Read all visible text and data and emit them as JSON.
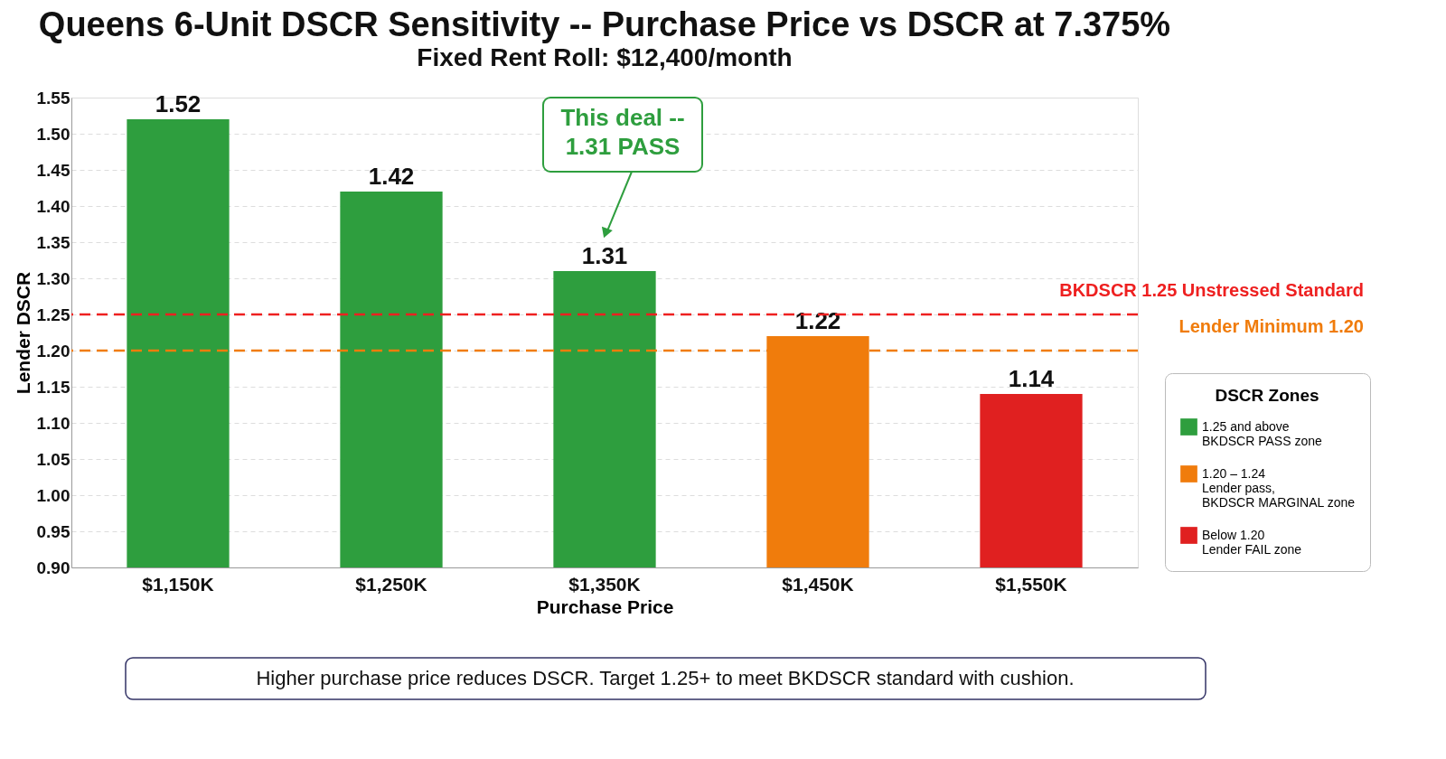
{
  "chart_data": {
    "type": "bar",
    "title": "Queens 6-Unit DSCR Sensitivity -- Purchase Price vs DSCR at 7.375%",
    "subtitle": "Fixed Rent Roll: $12,400/month",
    "xlabel": "Purchase Price",
    "ylabel": "Lender DSCR",
    "legend_title": "DSCR Zones",
    "categories": [
      "$1,150K",
      "$1,250K",
      "$1,350K",
      "$1,450K",
      "$1,550K"
    ],
    "series": [
      {
        "name": "1.25 and above\nBKDSCR PASS zone",
        "color": "#2e9e3e",
        "values": [
          1.52,
          1.42,
          1.31,
          null,
          null
        ]
      },
      {
        "name": "1.20 – 1.24\nLender pass,\nBKDSCR MARGINAL zone",
        "color": "#f07c0c",
        "values": [
          null,
          null,
          null,
          1.22,
          null
        ]
      },
      {
        "name": "Below 1.20\nLender FAIL zone",
        "color": "#e02020",
        "values": [
          null,
          null,
          null,
          null,
          1.14
        ]
      }
    ],
    "ylim": [
      0.9,
      1.55
    ],
    "yticks": [
      {
        "value": 0.9,
        "label": "0.90"
      },
      0.95,
      {
        "value": 1.0,
        "label": "1.00"
      },
      1.05,
      {
        "value": 1.1,
        "label": "1.10"
      },
      1.15,
      {
        "value": 1.2,
        "label": "1.20"
      },
      1.25,
      {
        "value": 1.3,
        "label": "1.30"
      },
      1.35,
      {
        "value": 1.4,
        "label": "1.40"
      },
      1.45,
      {
        "value": 1.5,
        "label": "1.50"
      },
      1.55
    ],
    "ref_lines": [
      {
        "axis": "y",
        "value": 1.25,
        "label": "BKDSCR 1.25 Unstressed Standard",
        "color": "#ee2020",
        "line_style": "dashed"
      },
      {
        "axis": "y",
        "value": 1.2,
        "label": "Lender Minimum 1.20",
        "color": "#f07c0c",
        "line_style": "dashed"
      }
    ],
    "annotations": [
      "This deal --\n1.31 PASS",
      "Higher purchase price reduces DSCR.  Target 1.25+ to meet BKDSCR standard with cushion."
    ],
    "data_labels": true,
    "grid": "y",
    "legend": "bottom right"
  }
}
